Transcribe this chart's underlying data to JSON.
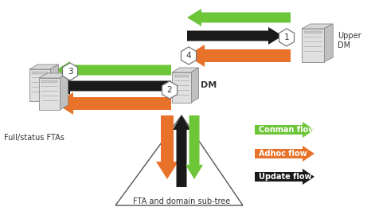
{
  "bg_color": "#ffffff",
  "green": "#6dc538",
  "orange": "#e8722a",
  "black": "#1a1a1a",
  "labels": {
    "upper_dm": "Upper\nDM",
    "full_status": "Full/status FTAs",
    "fta_tree": "FTA and domain sub-tree",
    "dm": "DM",
    "conman": "Conman flow",
    "adhoc": "Adhoc flow",
    "update": "Update flow",
    "num1": "1",
    "num2": "2",
    "num3": "3",
    "num4": "4"
  },
  "figsize": [
    4.71,
    2.6
  ],
  "dpi": 100
}
